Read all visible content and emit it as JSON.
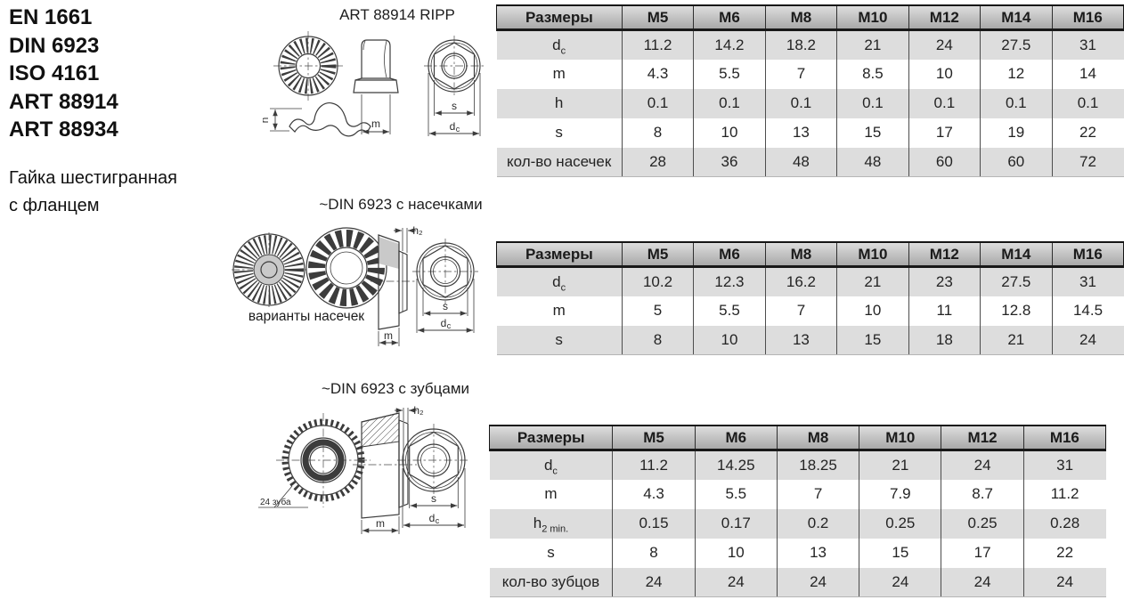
{
  "left_panel": {
    "standards": [
      "EN 1661",
      "DIN 6923",
      "ISO 4161",
      "ART 88914",
      "ART 88934"
    ],
    "product_line1": "Гайка шестигранная",
    "product_line2": "с фланцем"
  },
  "drawings": {
    "dims": {
      "h": "h",
      "m": "m",
      "s": "s",
      "d": "d",
      "d_sub": "c",
      "h2": "h₂"
    },
    "group1": {
      "title": "ART 88914 RIPP"
    },
    "group2": {
      "title": "~DIN 6923 с насечками",
      "caption": "варианты насечек"
    },
    "group3": {
      "title": "~DIN 6923 с зубцами",
      "teeth_note": "24 зуба"
    }
  },
  "tables": [
    {
      "header_first": "Размеры",
      "columns": [
        "M5",
        "M6",
        "M8",
        "M10",
        "M12",
        "M14",
        "M16"
      ],
      "rows": [
        {
          "label": "d",
          "label_sub": "c",
          "values": [
            "11.2",
            "14.2",
            "18.2",
            "21",
            "24",
            "27.5",
            "31"
          ]
        },
        {
          "label": "m",
          "label_sub": "",
          "values": [
            "4.3",
            "5.5",
            "7",
            "8.5",
            "10",
            "12",
            "14"
          ]
        },
        {
          "label": "h",
          "label_sub": "",
          "values": [
            "0.1",
            "0.1",
            "0.1",
            "0.1",
            "0.1",
            "0.1",
            "0.1"
          ]
        },
        {
          "label": "s",
          "label_sub": "",
          "values": [
            "8",
            "10",
            "13",
            "15",
            "17",
            "19",
            "22"
          ]
        },
        {
          "label": "кол-во насечек",
          "label_sub": "",
          "values": [
            "28",
            "36",
            "48",
            "48",
            "60",
            "60",
            "72"
          ]
        }
      ]
    },
    {
      "header_first": "Размеры",
      "columns": [
        "M5",
        "M6",
        "M8",
        "M10",
        "M12",
        "M14",
        "M16"
      ],
      "rows": [
        {
          "label": "d",
          "label_sub": "c",
          "values": [
            "10.2",
            "12.3",
            "16.2",
            "21",
            "23",
            "27.5",
            "31"
          ]
        },
        {
          "label": "m",
          "label_sub": "",
          "values": [
            "5",
            "5.5",
            "7",
            "10",
            "11",
            "12.8",
            "14.5"
          ]
        },
        {
          "label": "s",
          "label_sub": "",
          "values": [
            "8",
            "10",
            "13",
            "15",
            "18",
            "21",
            "24"
          ]
        }
      ]
    },
    {
      "header_first": "Размеры",
      "columns": [
        "M5",
        "M6",
        "M8",
        "M10",
        "M12",
        "M16"
      ],
      "rows": [
        {
          "label": "d",
          "label_sub": "c",
          "values": [
            "11.2",
            "14.25",
            "18.25",
            "21",
            "24",
            "31"
          ]
        },
        {
          "label": "m",
          "label_sub": "",
          "values": [
            "4.3",
            "5.5",
            "7",
            "7.9",
            "8.7",
            "11.2"
          ]
        },
        {
          "label": "h",
          "label_sub": "2 min.",
          "values": [
            "0.15",
            "0.17",
            "0.2",
            "0.25",
            "0.25",
            "0.28"
          ]
        },
        {
          "label": "s",
          "label_sub": "",
          "values": [
            "8",
            "10",
            "13",
            "15",
            "17",
            "22"
          ]
        },
        {
          "label": "кол-во зубцов",
          "label_sub": "",
          "values": [
            "24",
            "24",
            "24",
            "24",
            "24",
            "24"
          ]
        }
      ]
    }
  ],
  "colors": {
    "header_top": "#dddddd",
    "header_bottom": "#a9a9a9",
    "row_alt": "#dddddd",
    "divider": "#4d4d4d",
    "line": "#3c3c3c",
    "text": "#242424"
  }
}
